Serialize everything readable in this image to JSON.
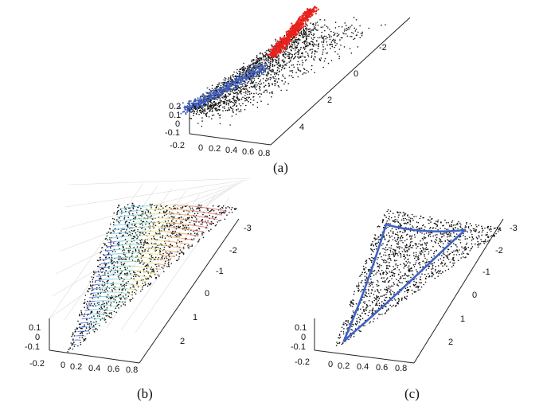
{
  "chart_data": [
    {
      "panel": "a",
      "caption": "(a)",
      "type": "scatter",
      "projection": "3d",
      "x_ticks": [
        "-0.2",
        "0",
        "0.2",
        "0.4",
        "0.6",
        "0.8"
      ],
      "y_ticks": [
        "-2",
        "0",
        "2",
        "4"
      ],
      "z_ticks": [
        "0.2",
        "0.1",
        "0",
        "-0.1"
      ],
      "series": [
        {
          "color": "#e8211c",
          "points": 650
        },
        {
          "color": "#111111",
          "points": 1800
        },
        {
          "color": "#3f5fc0",
          "points": 450
        }
      ],
      "grid": false
    },
    {
      "panel": "b",
      "caption": "(b)",
      "type": "scatter",
      "projection": "3d",
      "x_ticks": [
        "-0.2",
        "0",
        "0.2",
        "0.4",
        "0.6",
        "0.8"
      ],
      "y_ticks": [
        "-3",
        "-2",
        "-1",
        "0",
        "1",
        "2"
      ],
      "z_ticks": [
        "0.1",
        "0",
        "-0.1"
      ],
      "overlay": "fitted surface (colored mesh)",
      "surface_colors": [
        "#3b5bd6",
        "#6fc9e8",
        "#8fe0c0",
        "#e9e37a",
        "#f3a35c",
        "#e26a6a"
      ],
      "series": [
        {
          "color": "#111111",
          "points": 1300
        }
      ],
      "grid": true
    },
    {
      "panel": "c",
      "caption": "(c)",
      "type": "scatter",
      "projection": "3d",
      "x_ticks": [
        "-0.2",
        "0",
        "0.2",
        "0.4",
        "0.6",
        "0.8"
      ],
      "y_ticks": [
        "-3",
        "-2",
        "-1",
        "0",
        "1",
        "2"
      ],
      "z_ticks": [
        "0.1",
        "0",
        "-0.1"
      ],
      "overlay": "boundary curve",
      "boundary_color": "#3f62c8",
      "series": [
        {
          "color": "#111111",
          "points": 1400
        }
      ],
      "grid": false
    }
  ]
}
